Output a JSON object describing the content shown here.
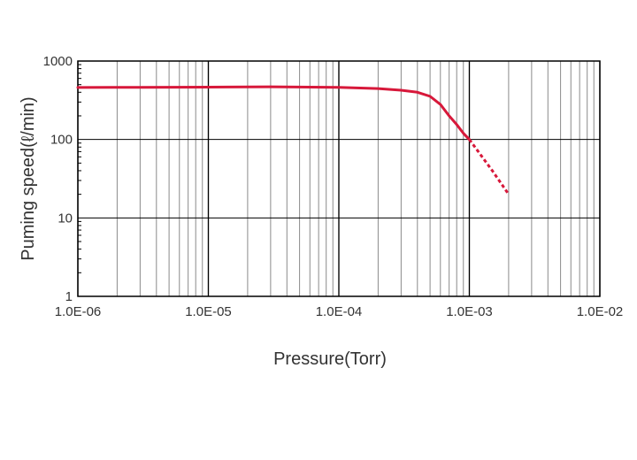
{
  "chart_data": {
    "type": "line",
    "title": "",
    "xlabel": "Pressure(Torr)",
    "ylabel": "Puming speed(ℓ/min)",
    "xscale": "log",
    "yscale": "log",
    "xlim": [
      1e-06,
      0.01
    ],
    "ylim": [
      1,
      1000
    ],
    "grid": true,
    "x_tick_labels": [
      "1.0E-06",
      "1.0E-05",
      "1.0E-04",
      "1.0E-03",
      "1.0E-02"
    ],
    "y_tick_labels": [
      "1",
      "10",
      "100",
      "1000"
    ],
    "series": [
      {
        "color": "#d7183a",
        "style": "solid",
        "points": [
          [
            1e-06,
            460
          ],
          [
            3e-06,
            462
          ],
          [
            1e-05,
            465
          ],
          [
            3e-05,
            470
          ],
          [
            0.0001,
            462
          ],
          [
            0.0002,
            445
          ],
          [
            0.0003,
            425
          ],
          [
            0.0004,
            400
          ],
          [
            0.0005,
            355
          ],
          [
            0.0006,
            280
          ],
          [
            0.0007,
            200
          ],
          [
            0.0008,
            155
          ],
          [
            0.0009,
            120
          ],
          [
            0.001,
            100
          ]
        ]
      },
      {
        "color": "#d7183a",
        "style": "dashed",
        "points": [
          [
            0.001,
            100
          ],
          [
            0.0015,
            40
          ],
          [
            0.002,
            20
          ]
        ]
      }
    ]
  }
}
